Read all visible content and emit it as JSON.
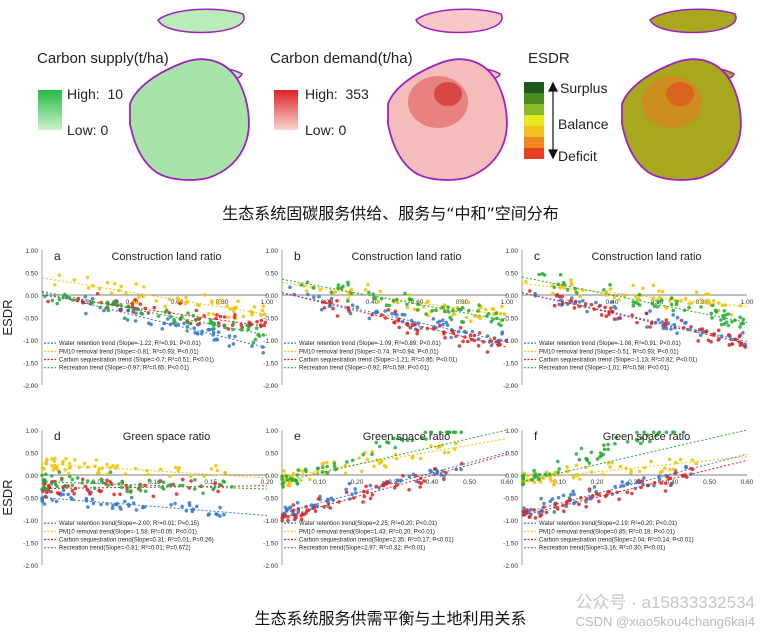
{
  "maps": {
    "supply": {
      "title": "Carbon supply(t/ha)",
      "high_label": "High:",
      "high_value": "10",
      "low_label": "Low: 0",
      "color_high": "#22bb44",
      "color_low": "#ccf2cc"
    },
    "demand": {
      "title": "Carbon demand(t/ha)",
      "high_label": "High:",
      "high_value": "353",
      "low_label": "Low: 0",
      "color_high": "#dd2222",
      "color_low": "#fbd4d4"
    },
    "esdr": {
      "title": "ESDR",
      "surplus": "Surplus",
      "balance": "Balance",
      "deficit": "Deficit",
      "colors": [
        "#1e5a1e",
        "#4a8a1e",
        "#8bb82a",
        "#e8e820",
        "#f0c020",
        "#ee8820",
        "#e84020"
      ]
    }
  },
  "captions": {
    "top": "生态系统固碳服务供给、服务与“中和”空间分布",
    "bottom": "生态系统服务供需平衡与土地利用关系"
  },
  "watermark": {
    "text1": "公众号 · a15833332534",
    "text2": "CSDN @xiao5kou4chang6kai4"
  },
  "chart_data": [
    {
      "type": "scatter",
      "panel": "a",
      "title": "Construction land ratio",
      "ylabel": "ESDR",
      "ylim": [
        -2,
        1
      ],
      "xlim": [
        0,
        1
      ],
      "yticks": [
        "1.00",
        "0.50",
        "0.00",
        "-0.50",
        "-1.00",
        "-1.50",
        "-2.00"
      ],
      "xticks": [
        "0.20",
        "0.40",
        "0.60",
        "0.80",
        "1.00"
      ],
      "series": [
        {
          "name": "Water retention trend",
          "legend": "Water retention trend (Slope=-1.22; R²=0.91; P<0.01)",
          "color": "#3377cc",
          "slope": -1.22,
          "intercept": 0.05
        },
        {
          "name": "PM10 removal trend",
          "legend": "PM10 removal trend (Slope=-0.81; R²=0.93; P<0.01)",
          "color": "#f2c200",
          "slope": -0.81,
          "intercept": 0.38
        },
        {
          "name": "Carbon sequestration trend",
          "legend": "Carbon sequestration trend (Slope=-0.7; R²=0.51; P<0.01)",
          "color": "#dd2222",
          "slope": -0.7,
          "intercept": 0.0
        },
        {
          "name": "Recreation trend",
          "legend": "Recreation trend (Slope=-0.97; R²=0.65; P<0.01)",
          "color": "#22aa33",
          "slope": -0.97,
          "intercept": 0.08
        }
      ]
    },
    {
      "type": "scatter",
      "panel": "b",
      "title": "Construction land ratio",
      "ylim": [
        -2,
        1
      ],
      "xlim": [
        0,
        1
      ],
      "yticks": [
        "1.00",
        "0.50",
        "0.00",
        "-0.50",
        "-1.00",
        "-1.50",
        "-2.00"
      ],
      "xticks": [
        "0.20",
        "0.40",
        "0.60",
        "0.80",
        "1.00"
      ],
      "series": [
        {
          "name": "Water retention trend",
          "legend": "Water retention trend (Slope=-1.09; R²=0.89; P<0.01)",
          "color": "#3377cc",
          "slope": -1.09,
          "intercept": 0.05
        },
        {
          "name": "PM10 removal trend",
          "legend": "PM10 removal trend (Slope=-0.74; R²=0.94; P<0.01)",
          "color": "#f2c200",
          "slope": -0.74,
          "intercept": 0.28
        },
        {
          "name": "Carbon sequestration trend",
          "legend": "Carbon sequestration trend (Slope=-1.21; R²=0.85; P<0.01)",
          "color": "#dd2222",
          "slope": -1.21,
          "intercept": 0.05
        },
        {
          "name": "Recreation trend",
          "legend": "Recreation trend (Slope=-0.92; R²=0.59; P<0.01)",
          "color": "#22aa33",
          "slope": -0.92,
          "intercept": 0.35
        }
      ]
    },
    {
      "type": "scatter",
      "panel": "c",
      "title": "Construction land ratio",
      "ylim": [
        -2,
        1
      ],
      "xlim": [
        0,
        1
      ],
      "yticks": [
        "1.00",
        "0.50",
        "0.00",
        "-0.50",
        "-1.00",
        "-1.50",
        "-2.00"
      ],
      "xticks": [
        "0.20",
        "0.40",
        "0.60",
        "0.80",
        "1.00"
      ],
      "series": [
        {
          "name": "Water retention trend",
          "legend": "Water retention trend (Slope=-1.08; R²=0.91; P<0.01)",
          "color": "#3377cc",
          "slope": -1.08,
          "intercept": 0.05
        },
        {
          "name": "PM10 removal trend",
          "legend": "PM10 removal trend (Slope=-0.51; R²=0.93; P<0.01)",
          "color": "#f2c200",
          "slope": -0.51,
          "intercept": 0.25
        },
        {
          "name": "Carbon sequestration trend",
          "legend": "Carbon sequestration trend (Slope=-1.13; R²=0.82; P<0.01)",
          "color": "#dd2222",
          "slope": -1.13,
          "intercept": 0.05
        },
        {
          "name": "Recreation trend",
          "legend": "Recreation trend (Slope=-1.01; R²=0.58; P<0.01)",
          "color": "#22aa33",
          "slope": -1.01,
          "intercept": 0.4
        }
      ]
    },
    {
      "type": "scatter",
      "panel": "d",
      "title": "Green space ratio",
      "ylabel": "ESDR",
      "ylim": [
        -2,
        1
      ],
      "xlim": [
        0,
        0.2
      ],
      "yticks": [
        "1.00",
        "0.50",
        "0.00",
        "-0.50",
        "-1.00",
        "-1.50",
        "-2.00"
      ],
      "xticks": [
        "0.05",
        "0.10",
        "0.15",
        "0.20"
      ],
      "series": [
        {
          "name": "Water retention trend",
          "legend": "Water retention trend(Slope=-2.00; R²=0.01; P=0.15)",
          "color": "#3377cc",
          "slope": -2.0,
          "intercept": -0.5
        },
        {
          "name": "PM10 removal trend",
          "legend": "PM10 removal trend(Slope=-1.58; R²=0.05; P<0.01)",
          "color": "#f2c200",
          "slope": -1.58,
          "intercept": 0.25
        },
        {
          "name": "Carbon sequestration trend",
          "legend": "Carbon sequestration trend(Slope=0.31; R²=0.01; P=0.26)",
          "color": "#dd2222",
          "slope": 0.31,
          "intercept": -0.3
        },
        {
          "name": "Recreation trend",
          "legend": "Recreation trend(Slope=-0.81; R²=0.01; P=0.672)",
          "color": "#22aa33",
          "slope": -0.81,
          "intercept": -0.15
        }
      ]
    },
    {
      "type": "scatter",
      "panel": "e",
      "title": "Green space ratio",
      "ylim": [
        -2,
        1
      ],
      "xlim": [
        0,
        0.6
      ],
      "yticks": [
        "1.00",
        "0.50",
        "0.00",
        "-0.50",
        "-1.00",
        "-1.50",
        "-2.00"
      ],
      "xticks": [
        "0.10",
        "0.20",
        "0.30",
        "0.40",
        "0.50",
        "0.60"
      ],
      "series": [
        {
          "name": "Water retention trend",
          "legend": "Water retention trend(Slope=2.25; R²=0.20; P<0.01)",
          "color": "#3377cc",
          "slope": 2.25,
          "intercept": -0.85
        },
        {
          "name": "PM10 removal trend",
          "legend": "PM10 removal trend(Slope=1.43; R²=0.20; P<0.01)",
          "color": "#f2c200",
          "slope": 1.43,
          "intercept": -0.05
        },
        {
          "name": "Carbon sequestration trend",
          "legend": "Carbon sequestration trend(Slope=2.35; R²=0.17; P<0.01)",
          "color": "#dd2222",
          "slope": 2.35,
          "intercept": -0.95
        },
        {
          "name": "Recreation trend",
          "legend": "Recreation trend(Slope=2.97; R²=0.32; P<0.01)",
          "color": "#22aa33",
          "slope": 2.97,
          "intercept": -0.15
        }
      ]
    },
    {
      "type": "scatter",
      "panel": "f",
      "title": "Green space ratio",
      "ylim": [
        -2,
        1
      ],
      "xlim": [
        0,
        0.6
      ],
      "yticks": [
        "1.00",
        "0.50",
        "0.00",
        "-0.50",
        "-1.00",
        "-1.50",
        "-2.00"
      ],
      "xticks": [
        "0.10",
        "0.20",
        "0.30",
        "0.40",
        "0.50",
        "0.60"
      ],
      "series": [
        {
          "name": "Water retention trend",
          "legend": "Water retention trend(Slope=2.19; R²=0.20; P<0.01)",
          "color": "#3377cc",
          "slope": 2.19,
          "intercept": -0.85
        },
        {
          "name": "PM10 removal trend",
          "legend": "PM10 removal trend(Slope=0.85; R²=0.18; P<0.01)",
          "color": "#f2c200",
          "slope": 0.85,
          "intercept": -0.1
        },
        {
          "name": "Carbon sequestration trend",
          "legend": "Carbon sequestration trend(Slope=2.04; R²=0.14; P<0.01)",
          "color": "#dd2222",
          "slope": 2.04,
          "intercept": -0.9
        },
        {
          "name": "Recreation trend",
          "legend": "Recreation trend(Slope=3.16; R²=0.30; P<0.01)",
          "color": "#22aa33",
          "slope": 3.16,
          "intercept": -0.15
        }
      ]
    }
  ]
}
